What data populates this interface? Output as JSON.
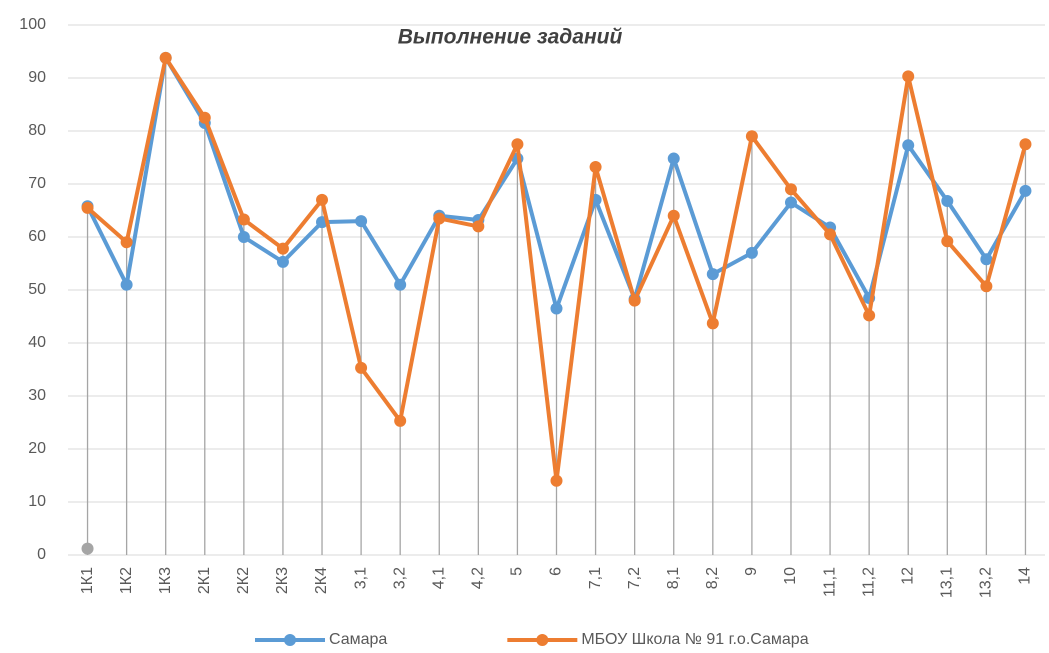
{
  "chart_data": {
    "type": "line",
    "title": "Выполнение заданий",
    "categories": [
      "1К1",
      "1К2",
      "1К3",
      "2К1",
      "2К2",
      "2К3",
      "2К4",
      "3,1",
      "3,2",
      "4,1",
      "4,2",
      "5",
      "6",
      "7,1",
      "7,2",
      "8,1",
      "8,2",
      "9",
      "10",
      "11,1",
      "11,2",
      "12",
      "13,1",
      "13,2",
      "14"
    ],
    "series": [
      {
        "name": "Самара",
        "color": "#5b9bd5",
        "values": [
          65.8,
          51,
          93.8,
          81.5,
          60,
          55.3,
          62.8,
          63,
          51,
          64,
          63.2,
          74.8,
          46.5,
          67,
          48.3,
          74.8,
          53,
          57,
          66.5,
          61.8,
          48.5,
          77.3,
          66.8,
          55.8,
          68.7
        ]
      },
      {
        "name": "МБОУ Школа № 91 г.о.Самара",
        "color": "#ed7d31",
        "values": [
          65.5,
          59,
          93.8,
          82.5,
          63.3,
          57.8,
          67,
          35.3,
          25.3,
          63.5,
          62,
          77.5,
          14,
          73.2,
          48,
          64,
          43.7,
          79,
          69,
          60.5,
          45.2,
          90.3,
          59.2,
          50.7,
          77.5
        ]
      },
      {
        "color": "#a5a5a5",
        "values": [
          1.2,
          null,
          null,
          null,
          null,
          null,
          null,
          null,
          null,
          null,
          null,
          null,
          null,
          null,
          null,
          null,
          null,
          null,
          null,
          null,
          null,
          null,
          null,
          null,
          null
        ]
      }
    ],
    "ylim": [
      0,
      100
    ],
    "yticks": [
      0,
      10,
      20,
      30,
      40,
      50,
      60,
      70,
      80,
      90,
      100
    ],
    "grid": true,
    "legend": "bottom"
  }
}
